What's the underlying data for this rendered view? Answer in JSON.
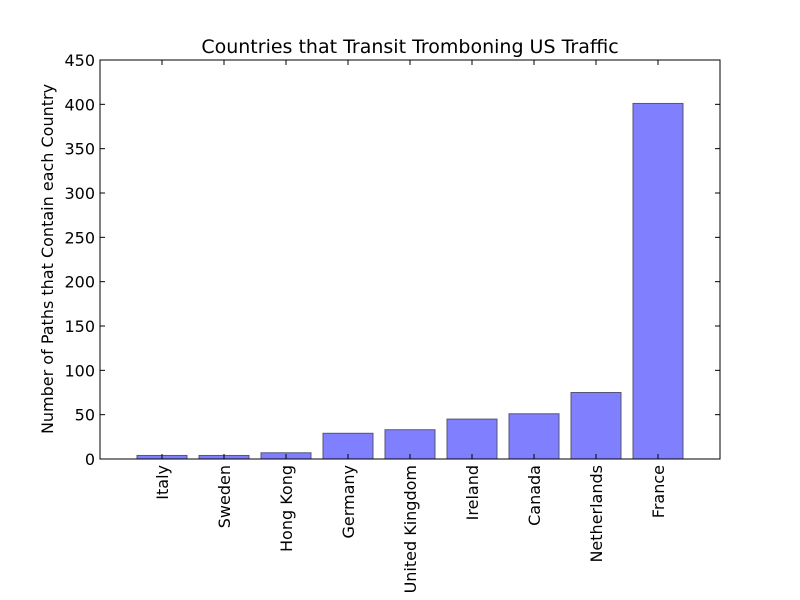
{
  "chart_data": {
    "type": "bar",
    "title": "Countries that Transit Tromboning US  Traffic",
    "xlabel": "",
    "ylabel": "Number of Paths that Contain each Country",
    "categories": [
      "Italy",
      "Sweden",
      "Hong Kong",
      "Germany",
      "United Kingdom",
      "Ireland",
      "Canada",
      "Netherlands",
      "France"
    ],
    "values": [
      4,
      4,
      7,
      29,
      33,
      45,
      51,
      75,
      401
    ],
    "ylim": [
      0,
      450
    ],
    "yticks": [
      0,
      50,
      100,
      150,
      200,
      250,
      300,
      350,
      400,
      450
    ],
    "bar_color": "#8080ff",
    "bar_edge_color": "#555577",
    "grid": false
  }
}
